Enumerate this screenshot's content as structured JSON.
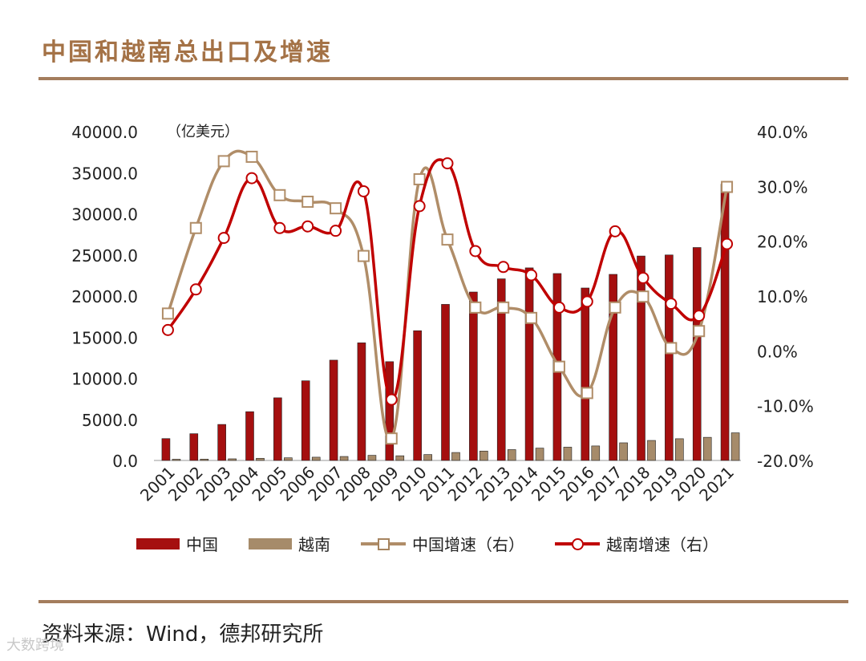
{
  "header": {
    "title": "中国和越南总出口及增速"
  },
  "footer": {
    "source": "资料来源：Wind，德邦研究所",
    "watermark": "大数跨境"
  },
  "chart_data": {
    "type": "bar+line",
    "unit_label": "（亿美元）",
    "categories": [
      "2001",
      "2002",
      "2003",
      "2004",
      "2005",
      "2006",
      "2007",
      "2008",
      "2009",
      "2010",
      "2011",
      "2012",
      "2013",
      "2014",
      "2015",
      "2016",
      "2017",
      "2018",
      "2019",
      "2020",
      "2021"
    ],
    "left_axis": {
      "range": [
        0,
        40000
      ],
      "ticks": [
        "0.0",
        "5000.0",
        "10000.0",
        "15000.0",
        "20000.0",
        "25000.0",
        "30000.0",
        "35000.0",
        "40000.0"
      ]
    },
    "right_axis": {
      "range": [
        -20,
        40
      ],
      "ticks": [
        "-20.0%",
        "-10.0%",
        "0.0%",
        "10.0%",
        "20.0%",
        "30.0%",
        "40.0%"
      ]
    },
    "bar_series": [
      {
        "name": "中国",
        "color": "#a50f0f",
        "values": [
          2661,
          3256,
          4382,
          5933,
          7620,
          9690,
          12201,
          14307,
          12016,
          15778,
          18984,
          20487,
          22090,
          23423,
          22735,
          20976,
          22634,
          24867,
          24995,
          25900,
          33600
        ]
      },
      {
        "name": "越南",
        "color": "#a68b6a",
        "values": [
          150,
          165,
          200,
          265,
          325,
          398,
          485,
          627,
          571,
          722,
          969,
          1145,
          1321,
          1502,
          1620,
          1766,
          2148,
          2435,
          2645,
          2815,
          3362
        ]
      }
    ],
    "line_series": [
      {
        "name": "中国增速（右）",
        "color": "#b08d68",
        "marker": "square",
        "values": [
          6.8,
          22.4,
          34.6,
          35.4,
          28.4,
          27.2,
          26.0,
          17.3,
          -16.0,
          31.3,
          20.3,
          7.9,
          7.9,
          6.0,
          -2.9,
          -7.7,
          7.9,
          9.9,
          0.5,
          3.6,
          29.9
        ]
      },
      {
        "name": "越南增速（右）",
        "color": "#c00000",
        "marker": "circle",
        "values": [
          3.8,
          11.2,
          20.6,
          31.5,
          22.4,
          22.7,
          21.9,
          29.1,
          -8.9,
          26.4,
          34.2,
          18.2,
          15.3,
          13.8,
          7.9,
          9.0,
          21.8,
          13.3,
          8.6,
          6.4,
          19.5
        ]
      }
    ],
    "legend": [
      "中国",
      "越南",
      "中国增速（右）",
      "越南增速（右）"
    ]
  }
}
